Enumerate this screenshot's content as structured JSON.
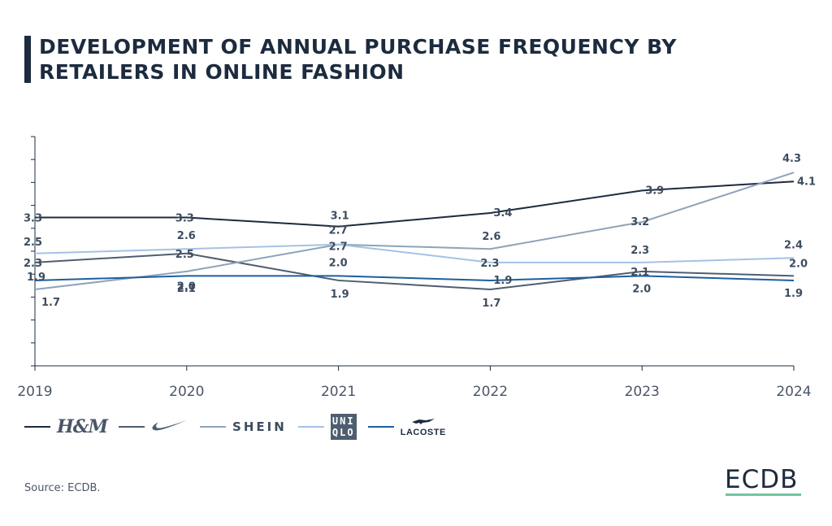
{
  "title": "DEVELOPMENT OF ANNUAL PURCHASE FREQUENCY BY RETAILERS IN ONLINE FASHION",
  "source": "Source: ECDB.",
  "brand": {
    "name": "ECDB",
    "underline_color": "#6ec6a0"
  },
  "legend_icons": {
    "hm": "H&M",
    "nike": "nike-swoosh-icon",
    "shein": "SHEIN",
    "uniqlo_line1": "UNI",
    "uniqlo_line2": "QLO",
    "lacoste": "LACOSTE",
    "lacoste_icon": "crocodile-icon"
  },
  "chart_data": {
    "type": "line",
    "title": "DEVELOPMENT OF ANNUAL PURCHASE FREQUENCY BY RETAILERS IN ONLINE FASHION",
    "xlabel": "",
    "ylabel": "",
    "x": [
      "2019",
      "2020",
      "2021",
      "2022",
      "2023",
      "2024"
    ],
    "ylim": [
      0,
      5.1
    ],
    "grid": false,
    "legend_position": "bottom-left",
    "series": [
      {
        "name": "H&M",
        "color": "#1c2b3e",
        "values": [
          3.3,
          3.3,
          3.1,
          3.4,
          3.9,
          4.1
        ]
      },
      {
        "name": "Nike",
        "color": "#4e5e70",
        "values": [
          2.3,
          2.5,
          1.9,
          1.7,
          2.1,
          2.0
        ]
      },
      {
        "name": "SHEIN",
        "color": "#8ea3b9",
        "values": [
          1.7,
          2.1,
          2.7,
          2.6,
          3.2,
          4.3
        ]
      },
      {
        "name": "UNIQLO",
        "color": "#a4c2e4",
        "values": [
          2.5,
          2.6,
          2.7,
          2.3,
          2.3,
          2.4
        ]
      },
      {
        "name": "LACOSTE",
        "color": "#1e5e9e",
        "values": [
          1.9,
          2.0,
          2.0,
          1.9,
          2.0,
          1.9
        ]
      }
    ]
  }
}
